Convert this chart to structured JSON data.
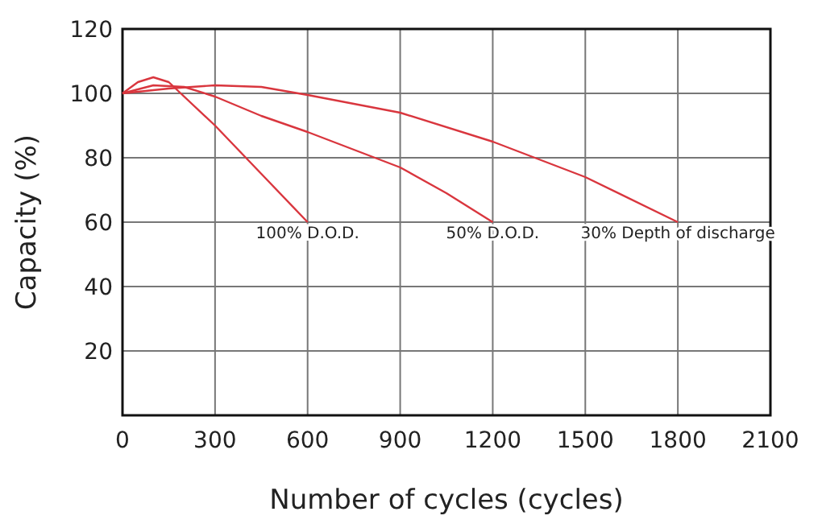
{
  "chart_data": {
    "type": "line",
    "xlabel": "Number of cycles (cycles)",
    "ylabel": "Capacity (%)",
    "xlim": [
      0,
      2100
    ],
    "xticks": [
      0,
      300,
      600,
      900,
      1200,
      1500,
      1800,
      2100
    ],
    "ylim": [
      0,
      120
    ],
    "yticks": [
      20,
      40,
      60,
      80,
      100,
      120
    ],
    "grid": true,
    "marker": "none",
    "line_style": "solid",
    "series": [
      {
        "color": "#d9363e",
        "x": [
          0,
          50,
          100,
          150,
          300,
          450,
          600
        ],
        "values": [
          100,
          103.5,
          105,
          103.5,
          90,
          75,
          60
        ]
      },
      {
        "color": "#d9363e",
        "x": [
          0,
          100,
          200,
          300,
          450,
          600,
          900,
          1050,
          1200
        ],
        "values": [
          100,
          102.5,
          102,
          99,
          93,
          88,
          77,
          69,
          60
        ]
      },
      {
        "color": "#d9363e",
        "x": [
          0,
          150,
          300,
          450,
          600,
          900,
          1200,
          1500,
          1800
        ],
        "values": [
          100,
          101.5,
          102.5,
          102,
          99.5,
          94,
          85,
          74,
          60
        ]
      }
    ],
    "annotations": [
      {
        "text": "100% D.O.D.",
        "x": 600,
        "y": 60
      },
      {
        "text": "50% D.O.D.",
        "x": 1200,
        "y": 60
      },
      {
        "text": "30% Depth of discharge",
        "x": 1800,
        "y": 60
      }
    ]
  }
}
